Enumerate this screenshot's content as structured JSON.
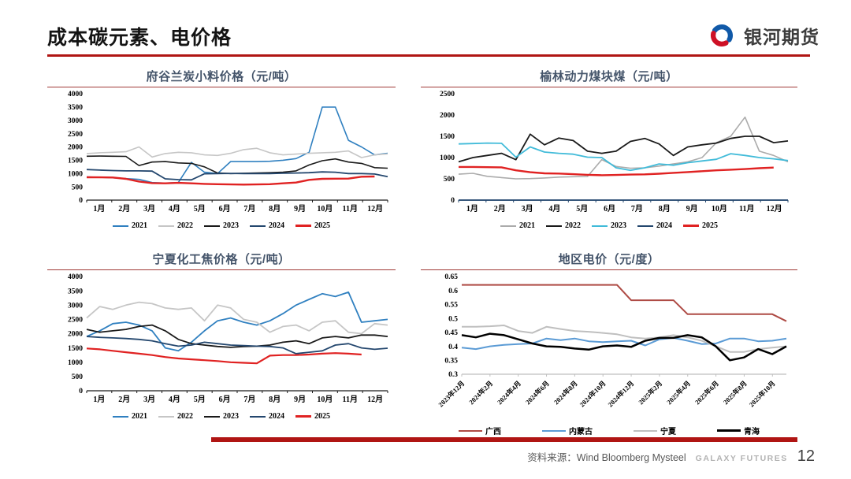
{
  "page": {
    "title": "成本碳元素、电价格",
    "logo_text": "银河期货",
    "footer": {
      "source_label": "资料来源：Wind Bloomberg Mysteel",
      "brand": "GALAXY FUTURES",
      "page_number": "12"
    },
    "colors": {
      "accent_red": "#B01513",
      "panel_rule_red": "#A03A36",
      "panel_title": "#44546A",
      "logo_blue": "#1059A8",
      "logo_red": "#CE1126"
    }
  },
  "chart_data": [
    {
      "type": "line",
      "title": "府谷兰炭小料价格（元/吨）",
      "ylim": [
        0,
        4000
      ],
      "yticks": [
        {
          "v": 4000,
          "t": "4000"
        },
        {
          "v": 3500,
          "t": "3500"
        },
        {
          "v": 3000,
          "t": "3000"
        },
        {
          "v": 2500,
          "t": "2500"
        },
        {
          "v": 2000,
          "t": "2000"
        },
        {
          "v": 1500,
          "t": "1500"
        },
        {
          "v": 1000,
          "t": "1000"
        },
        {
          "v": 500,
          "t": "500"
        },
        {
          "v": 0,
          "t": "0"
        }
      ],
      "xlabels": [
        {
          "t": "1月",
          "f": 0.0417
        },
        {
          "t": "2月",
          "f": 0.125
        },
        {
          "t": "3月",
          "f": 0.2083
        },
        {
          "t": "4月",
          "f": 0.2917
        },
        {
          "t": "5月",
          "f": 0.375
        },
        {
          "t": "6月",
          "f": 0.4583
        },
        {
          "t": "7月",
          "f": 0.5417
        },
        {
          "t": "8月",
          "f": 0.625
        },
        {
          "t": "9月",
          "f": 0.7083
        },
        {
          "t": "10月",
          "f": 0.7917
        },
        {
          "t": "11月",
          "f": 0.875
        },
        {
          "t": "12月",
          "f": 0.9583
        }
      ],
      "xticks": [
        0,
        0.0833,
        0.1667,
        0.25,
        0.3333,
        0.4167,
        0.5,
        0.5833,
        0.6667,
        0.75,
        0.8333,
        0.9167,
        1
      ],
      "rotate": false,
      "axis_color": "#1a1a1a",
      "series": [
        {
          "name": "2021",
          "color": "#3080C0",
          "w": 1.6,
          "values": [
            870,
            855,
            840,
            810,
            780,
            660,
            640,
            660,
            1420,
            1050,
            1000,
            1450,
            1450,
            1450,
            1460,
            1500,
            1560,
            1800,
            3500,
            3500,
            2250,
            2000,
            1700,
            1760
          ]
        },
        {
          "name": "2022",
          "color": "#C6C6C6",
          "w": 1.6,
          "values": [
            1750,
            1780,
            1800,
            1820,
            2000,
            1620,
            1750,
            1800,
            1780,
            1700,
            1680,
            1760,
            1900,
            1950,
            1780,
            1700,
            1730,
            1760,
            1780,
            1800,
            1850,
            1600,
            1700,
            1740
          ]
        },
        {
          "name": "2023",
          "color": "#1a1a1a",
          "w": 1.6,
          "values": [
            1650,
            1655,
            1650,
            1645,
            1300,
            1430,
            1450,
            1400,
            1380,
            1250,
            1020,
            1000,
            1010,
            1020,
            1030,
            1050,
            1100,
            1320,
            1480,
            1550,
            1430,
            1380,
            1220,
            1200
          ]
        },
        {
          "name": "2024",
          "color": "#24476E",
          "w": 1.8,
          "values": [
            1150,
            1130,
            1110,
            1100,
            1100,
            1090,
            800,
            770,
            760,
            990,
            1000,
            1005,
            1000,
            1000,
            1000,
            1010,
            1020,
            1030,
            1060,
            1050,
            1000,
            1000,
            980,
            880
          ]
        },
        {
          "name": "2025",
          "color": "#E02222",
          "w": 2.4,
          "values": [
            860,
            855,
            850,
            800,
            700,
            640,
            630,
            650,
            630,
            610,
            600,
            590,
            585,
            590,
            600,
            630,
            660,
            760,
            800,
            805,
            810,
            880,
            890,
            null
          ]
        }
      ]
    },
    {
      "type": "line",
      "title": "榆林动力煤块煤（元/吨）",
      "ylim": [
        0,
        2500
      ],
      "yticks": [
        {
          "v": 2500,
          "t": "2500"
        },
        {
          "v": 2000,
          "t": "2000"
        },
        {
          "v": 1500,
          "t": "1500"
        },
        {
          "v": 1000,
          "t": "1000"
        },
        {
          "v": 500,
          "t": "500"
        },
        {
          "v": 0,
          "t": "0"
        }
      ],
      "xlabels": [
        {
          "t": "1月",
          "f": 0.0417
        },
        {
          "t": "2月",
          "f": 0.125
        },
        {
          "t": "3月",
          "f": 0.2083
        },
        {
          "t": "4月",
          "f": 0.2917
        },
        {
          "t": "5月",
          "f": 0.375
        },
        {
          "t": "6月",
          "f": 0.4583
        },
        {
          "t": "7月",
          "f": 0.5417
        },
        {
          "t": "8月",
          "f": 0.625
        },
        {
          "t": "9月",
          "f": 0.7083
        },
        {
          "t": "10月",
          "f": 0.7917
        },
        {
          "t": "11月",
          "f": 0.875
        },
        {
          "t": "12月",
          "f": 0.9583
        }
      ],
      "xticks": [
        0,
        0.0833,
        0.1667,
        0.25,
        0.3333,
        0.4167,
        0.5,
        0.5833,
        0.6667,
        0.75,
        0.8333,
        0.9167,
        1
      ],
      "rotate": false,
      "axis_color": "#24476E",
      "series": [
        {
          "name": "2021",
          "color": "#ABABAB",
          "w": 1.6,
          "values": [
            610,
            630,
            560,
            530,
            500,
            505,
            520,
            540,
            550,
            555,
            950,
            790,
            750,
            760,
            800,
            850,
            900,
            1000,
            1350,
            1500,
            1950,
            1150,
            1050,
            900
          ]
        },
        {
          "name": "2022",
          "color": "#1a1a1a",
          "w": 1.8,
          "values": [
            900,
            1000,
            1050,
            1100,
            950,
            1550,
            1300,
            1460,
            1400,
            1150,
            1100,
            1150,
            1380,
            1450,
            1320,
            1050,
            1250,
            1300,
            1340,
            1450,
            1500,
            1500,
            1350,
            1390
          ]
        },
        {
          "name": "2023",
          "color": "#41BBD9",
          "w": 1.8,
          "values": [
            1320,
            1330,
            1340,
            1335,
            1010,
            1250,
            1130,
            1100,
            1080,
            1010,
            1000,
            760,
            700,
            760,
            850,
            820,
            880,
            920,
            960,
            1090,
            1050,
            1000,
            970,
            930
          ]
        },
        {
          "name": "2024",
          "color": "#24476E",
          "w": 1.8,
          "values": [
            0,
            0,
            0,
            0,
            0,
            0,
            0,
            0,
            0,
            0,
            0,
            0,
            0,
            0,
            0,
            0,
            0,
            0,
            0,
            0,
            0,
            0,
            0,
            0
          ]
        },
        {
          "name": "2025",
          "color": "#E02222",
          "w": 2.4,
          "values": [
            780,
            780,
            775,
            770,
            700,
            655,
            630,
            625,
            610,
            595,
            585,
            590,
            600,
            605,
            620,
            640,
            660,
            680,
            700,
            715,
            730,
            750,
            765,
            null
          ]
        }
      ]
    },
    {
      "type": "line",
      "title": "宁夏化工焦价格（元/吨）",
      "ylim": [
        0,
        4000
      ],
      "yticks": [
        {
          "v": 4000,
          "t": "4000"
        },
        {
          "v": 3500,
          "t": "3500"
        },
        {
          "v": 3000,
          "t": "3000"
        },
        {
          "v": 2500,
          "t": "2500"
        },
        {
          "v": 2000,
          "t": "2000"
        },
        {
          "v": 1500,
          "t": "1500"
        },
        {
          "v": 1000,
          "t": "1000"
        },
        {
          "v": 500,
          "t": "500"
        },
        {
          "v": 0,
          "t": "0"
        }
      ],
      "xlabels": [
        {
          "t": "1月",
          "f": 0.0417
        },
        {
          "t": "2月",
          "f": 0.125
        },
        {
          "t": "3月",
          "f": 0.2083
        },
        {
          "t": "4月",
          "f": 0.2917
        },
        {
          "t": "5月",
          "f": 0.375
        },
        {
          "t": "6月",
          "f": 0.4583
        },
        {
          "t": "7月",
          "f": 0.5417
        },
        {
          "t": "8月",
          "f": 0.625
        },
        {
          "t": "9月",
          "f": 0.7083
        },
        {
          "t": "10月",
          "f": 0.7917
        },
        {
          "t": "11月",
          "f": 0.875
        },
        {
          "t": "12月",
          "f": 0.9583
        }
      ],
      "xticks": [
        0,
        0.0833,
        0.1667,
        0.25,
        0.3333,
        0.4167,
        0.5,
        0.5833,
        0.6667,
        0.75,
        0.8333,
        0.9167,
        1
      ],
      "rotate": false,
      "axis_color": "#1a1a1a",
      "series": [
        {
          "name": "2021",
          "color": "#3080C0",
          "w": 1.8,
          "values": [
            1900,
            2100,
            2350,
            2400,
            2300,
            2100,
            1500,
            1400,
            1700,
            2100,
            2450,
            2550,
            2400,
            2300,
            2450,
            2700,
            3000,
            3200,
            3400,
            3300,
            3450,
            2400,
            2450,
            2500
          ]
        },
        {
          "name": "2022",
          "color": "#C6C6C6",
          "w": 1.8,
          "values": [
            2550,
            2950,
            2850,
            3000,
            3100,
            3050,
            2900,
            2850,
            2900,
            2450,
            3000,
            2900,
            2500,
            2400,
            2050,
            2250,
            2300,
            2100,
            2400,
            2450,
            2050,
            2000,
            2350,
            2300
          ]
        },
        {
          "name": "2023",
          "color": "#1a1a1a",
          "w": 1.8,
          "values": [
            2150,
            2050,
            2100,
            2150,
            2250,
            2300,
            2100,
            1800,
            1650,
            1600,
            1550,
            1520,
            1550,
            1560,
            1600,
            1700,
            1750,
            1650,
            1850,
            1900,
            1850,
            1950,
            1950,
            1900
          ]
        },
        {
          "name": "2024",
          "color": "#24476E",
          "w": 1.8,
          "values": [
            1900,
            1870,
            1850,
            1830,
            1800,
            1750,
            1650,
            1560,
            1600,
            1700,
            1650,
            1600,
            1580,
            1560,
            1550,
            1500,
            1300,
            1350,
            1400,
            1600,
            1650,
            1500,
            1450,
            1490
          ]
        },
        {
          "name": "2025",
          "color": "#E02222",
          "w": 2.2,
          "values": [
            1480,
            1450,
            1400,
            1350,
            1300,
            1250,
            1180,
            1130,
            1100,
            1070,
            1040,
            1000,
            980,
            960,
            1230,
            1250,
            1250,
            1270,
            1300,
            1320,
            1300,
            1270,
            null,
            null
          ]
        }
      ]
    },
    {
      "type": "line",
      "title": "地区电价（元/度）",
      "ylim": [
        0.3,
        0.65
      ],
      "yticks": [
        {
          "v": 0.65,
          "t": "0.65"
        },
        {
          "v": 0.6,
          "t": "0.6"
        },
        {
          "v": 0.55,
          "t": "0.55"
        },
        {
          "v": 0.5,
          "t": "0.5"
        },
        {
          "v": 0.45,
          "t": "0.45"
        },
        {
          "v": 0.4,
          "t": "0.4"
        },
        {
          "v": 0.35,
          "t": "0.35"
        },
        {
          "v": 0.3,
          "t": "0.3"
        }
      ],
      "xlabels": [
        {
          "t": "2023年12月",
          "f": 0
        },
        {
          "t": "2024年2月",
          "f": 0.087
        },
        {
          "t": "2024年4月",
          "f": 0.174
        },
        {
          "t": "2024年6月",
          "f": 0.261
        },
        {
          "t": "2024年8月",
          "f": 0.348
        },
        {
          "t": "2024年10月",
          "f": 0.435
        },
        {
          "t": "2024年12月",
          "f": 0.522
        },
        {
          "t": "2025年2月",
          "f": 0.609
        },
        {
          "t": "2025年4月",
          "f": 0.696
        },
        {
          "t": "2025年6月",
          "f": 0.783
        },
        {
          "t": "2025年8月",
          "f": 0.87
        },
        {
          "t": "2025年10月",
          "f": 0.957
        }
      ],
      "xticks": [
        0,
        0.087,
        0.174,
        0.261,
        0.348,
        0.435,
        0.522,
        0.609,
        0.696,
        0.783,
        0.87,
        0.957
      ],
      "rotate": true,
      "axis_color": "#BFBFBF",
      "series": [
        {
          "name": "广西",
          "color": "#AE4A44",
          "w": 2,
          "values": [
            0.62,
            0.62,
            0.62,
            0.62,
            0.62,
            0.62,
            0.62,
            0.62,
            0.62,
            0.62,
            0.62,
            0.62,
            0.565,
            0.565,
            0.565,
            0.565,
            0.515,
            0.515,
            0.515,
            0.515,
            0.515,
            0.515,
            0.515,
            0.49
          ]
        },
        {
          "name": "内蒙古",
          "color": "#5B9BD5",
          "w": 2,
          "values": [
            0.395,
            0.39,
            0.4,
            0.405,
            0.408,
            0.41,
            0.428,
            0.422,
            0.428,
            0.418,
            0.415,
            0.418,
            0.42,
            0.403,
            0.425,
            0.43,
            0.42,
            0.408,
            0.41,
            0.428,
            0.428,
            0.418,
            0.42,
            0.428
          ]
        },
        {
          "name": "宁夏",
          "color": "#BFBFBF",
          "w": 2,
          "values": [
            0.47,
            0.47,
            0.472,
            0.475,
            0.455,
            0.448,
            0.47,
            0.462,
            0.455,
            0.452,
            0.448,
            0.443,
            0.432,
            0.428,
            0.432,
            0.44,
            0.432,
            0.42,
            0.4,
            0.38,
            0.38,
            0.39,
            0.395,
            0.4
          ]
        },
        {
          "name": "青海",
          "color": "#000000",
          "w": 2.5,
          "values": [
            0.44,
            0.432,
            0.445,
            0.44,
            0.425,
            0.41,
            0.4,
            0.398,
            0.392,
            0.388,
            0.4,
            0.403,
            0.398,
            0.42,
            0.43,
            0.43,
            0.44,
            0.432,
            0.4,
            0.35,
            0.36,
            0.39,
            0.372,
            0.4
          ]
        }
      ]
    }
  ]
}
